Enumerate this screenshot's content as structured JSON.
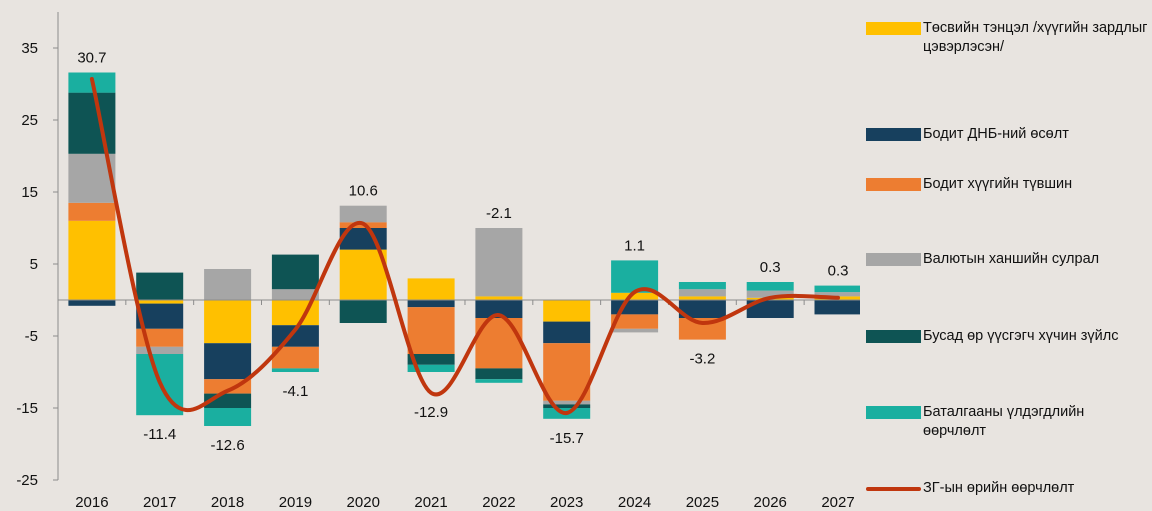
{
  "chart_data": {
    "type": "bar",
    "stacked": true,
    "categories": [
      "2016",
      "2017",
      "2018",
      "2019",
      "2020",
      "2021",
      "2022",
      "2023",
      "2024",
      "2025",
      "2026",
      "2027"
    ],
    "ylim": [
      -25,
      40
    ],
    "yticks": [
      35,
      25,
      15,
      5,
      -5,
      -15,
      -25
    ],
    "series": [
      {
        "name": "Төсвийн тэнцэл /хүүгийн зардлыг цэвэрлэсэн/",
        "color": "#ffc000",
        "values": [
          11.0,
          -0.5,
          -6.0,
          -3.5,
          7.0,
          3.0,
          0.5,
          -3.0,
          1.0,
          0.5,
          0.3,
          0.5
        ]
      },
      {
        "name": "Бодит ДНБ-ний өсөлт",
        "color": "#17405e",
        "values": [
          -0.8,
          -3.5,
          -5.0,
          -3.0,
          3.0,
          -1.0,
          -2.5,
          -3.0,
          -2.0,
          -2.5,
          -2.5,
          -2.0
        ]
      },
      {
        "name": "Бодит хүүгийн түвшин",
        "color": "#ed7d31",
        "values": [
          2.5,
          -2.5,
          -2.0,
          -3.0,
          0.8,
          -6.5,
          -7.0,
          -8.0,
          -2.0,
          -3.0,
          0.0,
          0.0
        ]
      },
      {
        "name": "Валютын ханшийн сулрал",
        "color": "#a6a6a6",
        "values": [
          6.8,
          -1.0,
          4.3,
          1.5,
          2.3,
          0.0,
          9.5,
          -0.5,
          -0.5,
          1.0,
          1.0,
          0.6
        ]
      },
      {
        "name": "Бусад өр үүсгэгч хүчин зүйлс",
        "color": "#0e5454",
        "values": [
          8.5,
          3.8,
          -2.0,
          4.8,
          -3.2,
          -1.5,
          -1.5,
          -0.5,
          0.0,
          0.0,
          0.0,
          0.0
        ]
      },
      {
        "name": "Баталгааны үлдэгдлийн өөрчлөлт",
        "color": "#1aafa0",
        "values": [
          2.8,
          -8.5,
          -2.5,
          -0.5,
          0.0,
          -1.0,
          -0.5,
          -1.5,
          4.5,
          1.0,
          1.2,
          0.9
        ]
      }
    ],
    "line": {
      "name": "ЗГ-ын өрийн өөрчлөлт",
      "color": "#c0360e",
      "values": [
        30.7,
        -11.4,
        -12.6,
        -4.1,
        10.6,
        -12.9,
        -2.1,
        -15.7,
        1.1,
        -3.2,
        0.3,
        0.3
      ],
      "labels": [
        "30.7",
        "-11.4",
        "-12.6",
        "-4.1",
        "10.6",
        "-12.9",
        "-2.1",
        "-15.7",
        "1.1",
        "-3.2",
        "0.3",
        "0.3"
      ]
    },
    "grid": false
  }
}
